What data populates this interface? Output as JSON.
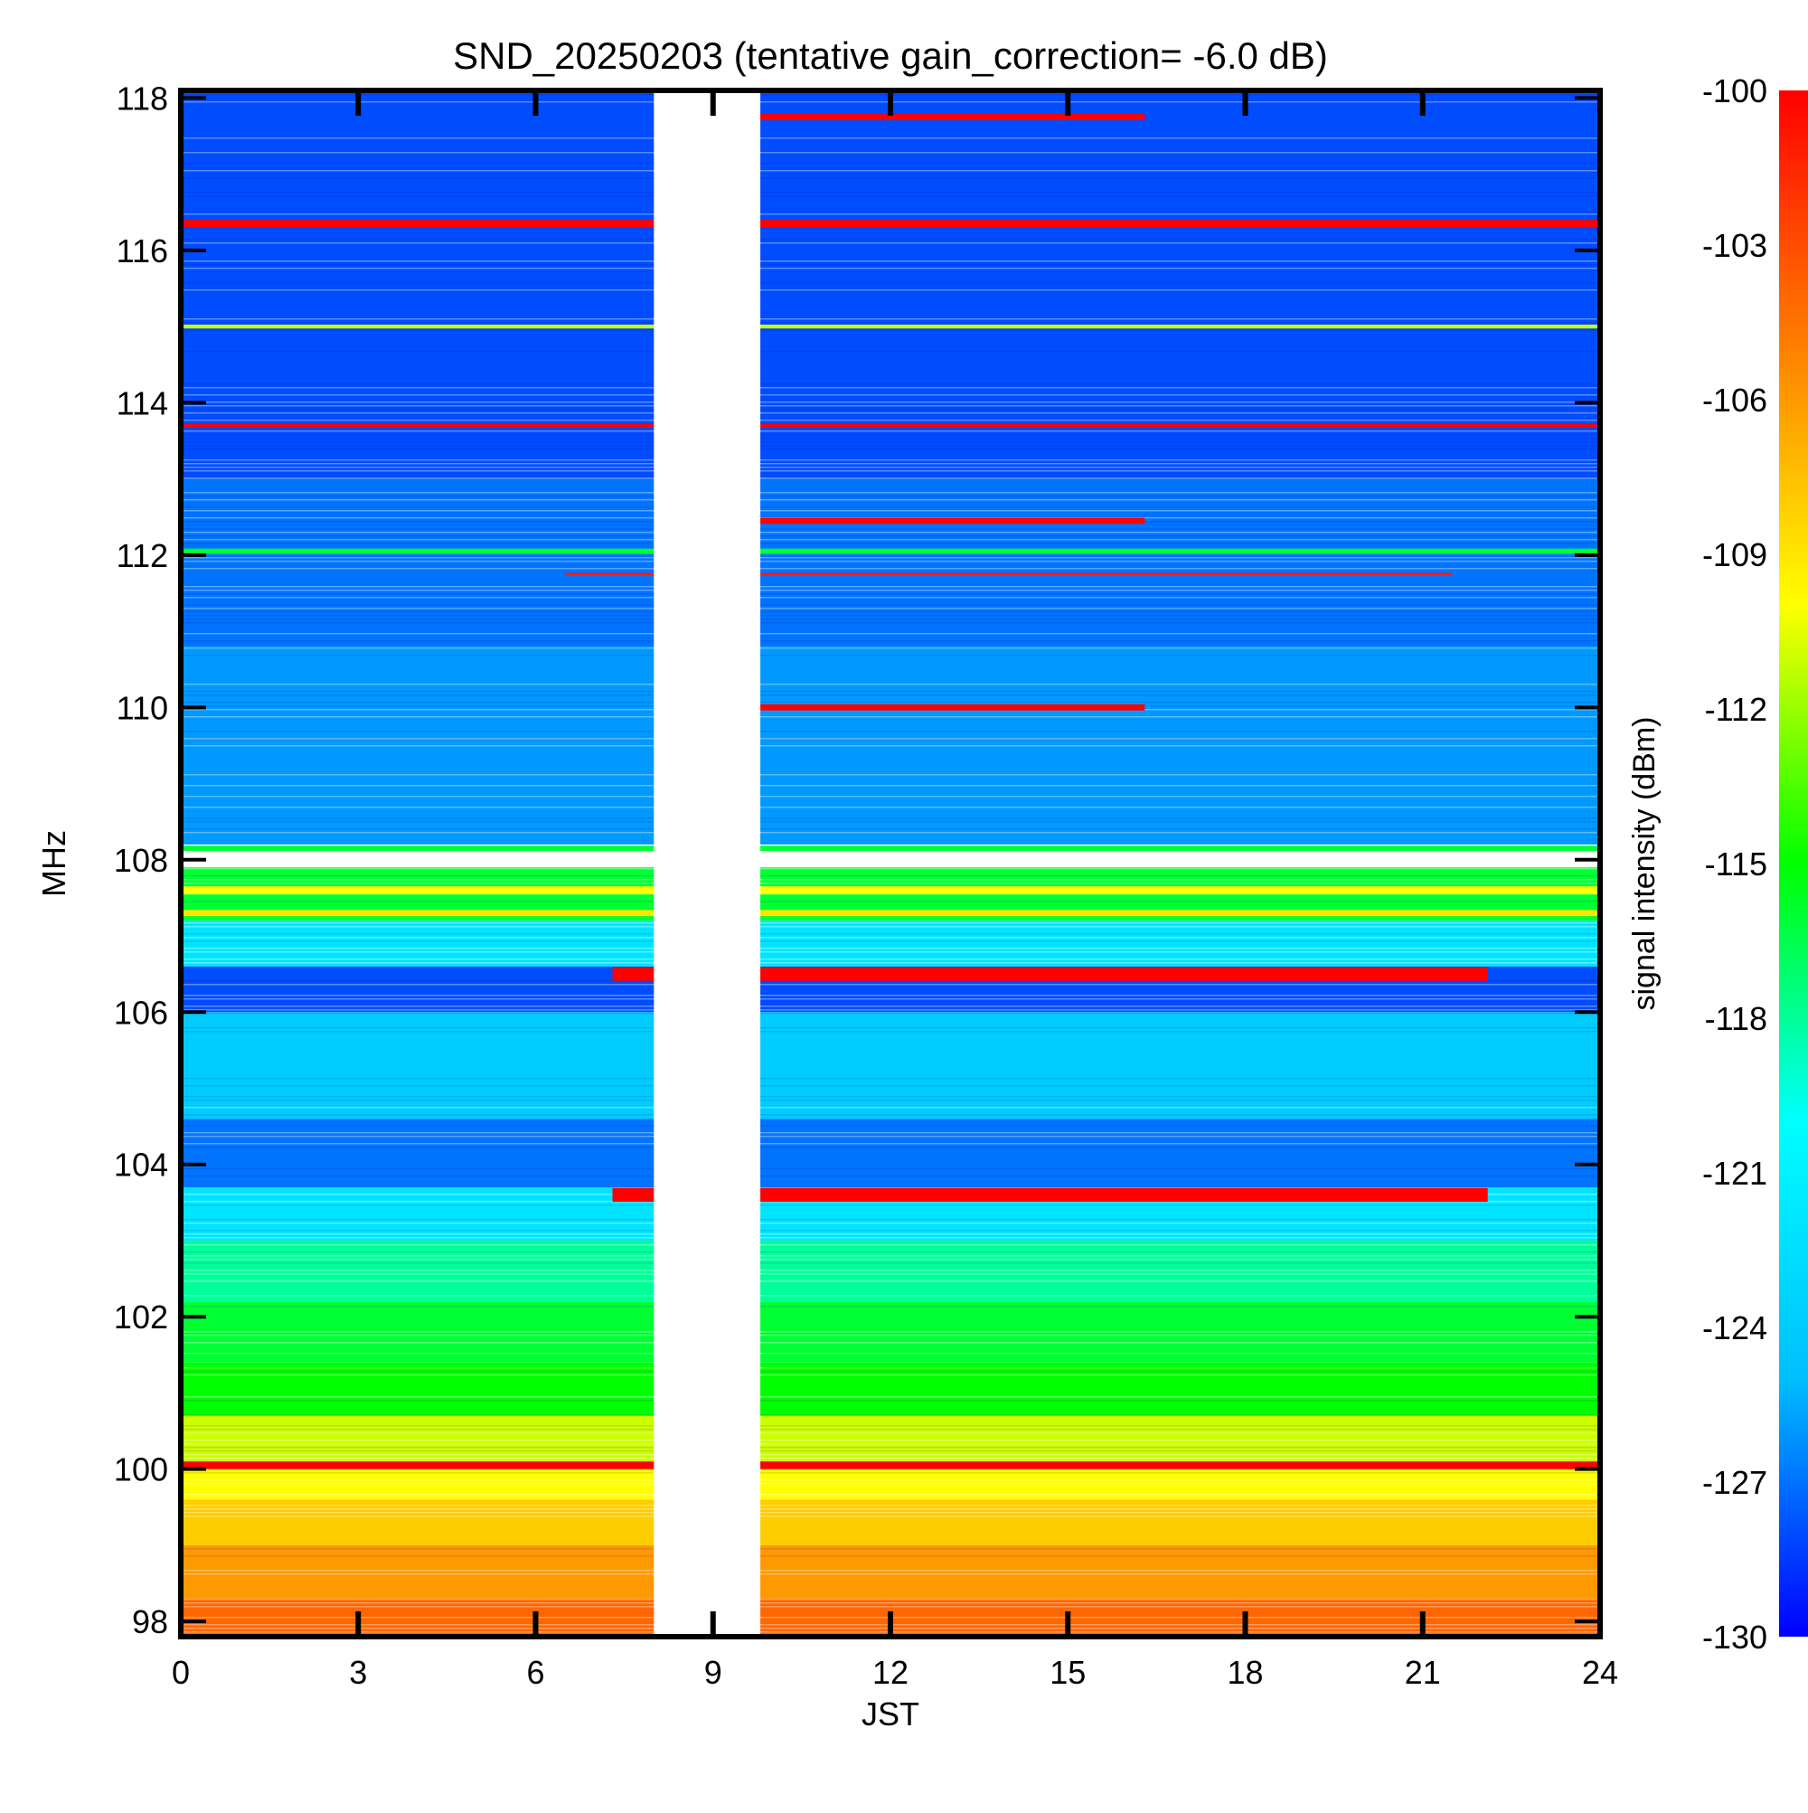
{
  "chart_data": {
    "type": "heatmap",
    "title": "SND_20250203 (tentative gain_correction= -6.0 dB)",
    "xlabel": "JST",
    "ylabel": "MHz",
    "xlim": [
      0,
      24
    ],
    "ylim": [
      97.8,
      118.1
    ],
    "xticks": [
      0,
      3,
      6,
      9,
      12,
      15,
      18,
      21,
      24
    ],
    "yticks": [
      98,
      100,
      102,
      104,
      106,
      108,
      110,
      112,
      114,
      116,
      118
    ],
    "colorbar": {
      "label": "signal intensity (dBm)",
      "range": [
        -130,
        -100
      ],
      "ticks": [
        -100,
        -103,
        -106,
        -109,
        -112,
        -115,
        -118,
        -121,
        -124,
        -127,
        -130
      ],
      "colors": [
        "#0000ff",
        "#00bfff",
        "#00ffff",
        "#00ff00",
        "#ffff00",
        "#ff8000",
        "#ff0000"
      ]
    },
    "data_gap": {
      "start": 8.0,
      "end": 9.8
    },
    "bands": [
      {
        "lo": 97.8,
        "hi": 98.3,
        "value": -104
      },
      {
        "lo": 98.3,
        "hi": 99.0,
        "value": -106
      },
      {
        "lo": 99.0,
        "hi": 99.6,
        "value": -108
      },
      {
        "lo": 99.6,
        "hi": 100.0,
        "value": -110
      },
      {
        "lo": 100.0,
        "hi": 100.7,
        "value": -111
      },
      {
        "lo": 100.7,
        "hi": 101.4,
        "value": -115
      },
      {
        "lo": 101.4,
        "hi": 102.2,
        "value": -116
      },
      {
        "lo": 102.2,
        "hi": 103.0,
        "value": -118
      },
      {
        "lo": 103.0,
        "hi": 103.7,
        "value": -122
      },
      {
        "lo": 103.7,
        "hi": 104.6,
        "value": -127
      },
      {
        "lo": 104.6,
        "hi": 106.0,
        "value": -124
      },
      {
        "lo": 106.0,
        "hi": 106.6,
        "value": -128
      },
      {
        "lo": 106.6,
        "hi": 107.2,
        "value": -122
      },
      {
        "lo": 107.2,
        "hi": 107.9,
        "value": -116
      },
      {
        "lo": 108.2,
        "hi": 110.8,
        "value": -126
      },
      {
        "lo": 110.8,
        "hi": 113.0,
        "value": -127
      },
      {
        "lo": 113.0,
        "hi": 118.1,
        "value": -128
      }
    ],
    "lines": [
      {
        "freq": 100.05,
        "start": 0,
        "end": 24,
        "value": -100,
        "width": 0.1
      },
      {
        "freq": 103.6,
        "start": 7.3,
        "end": 22.1,
        "value": -100,
        "width": 0.18
      },
      {
        "freq": 106.5,
        "start": 7.3,
        "end": 22.1,
        "value": -100,
        "width": 0.18
      },
      {
        "freq": 107.6,
        "start": 0,
        "end": 24,
        "value": -110,
        "width": 0.1
      },
      {
        "freq": 107.3,
        "start": 0,
        "end": 24,
        "value": -109,
        "width": 0.08
      },
      {
        "freq": 108.15,
        "start": 0,
        "end": 24,
        "value": -116,
        "width": 0.07
      },
      {
        "freq": 110.0,
        "start": 9.8,
        "end": 16.3,
        "value": -100,
        "width": 0.08
      },
      {
        "freq": 111.75,
        "start": 6.5,
        "end": 21.5,
        "value": -101,
        "width": 0.03
      },
      {
        "freq": 112.05,
        "start": 0,
        "end": 24,
        "value": -116,
        "width": 0.07
      },
      {
        "freq": 112.45,
        "start": 9.8,
        "end": 16.3,
        "value": -100,
        "width": 0.08
      },
      {
        "freq": 113.7,
        "start": 0,
        "end": 24,
        "value": -100,
        "width": 0.04
      },
      {
        "freq": 115.0,
        "start": 0,
        "end": 24,
        "value": -111,
        "width": 0.05
      },
      {
        "freq": 116.35,
        "start": 0,
        "end": 24,
        "value": -100,
        "width": 0.1
      },
      {
        "freq": 117.75,
        "start": 9.8,
        "end": 16.3,
        "value": -100,
        "width": 0.08
      }
    ]
  }
}
